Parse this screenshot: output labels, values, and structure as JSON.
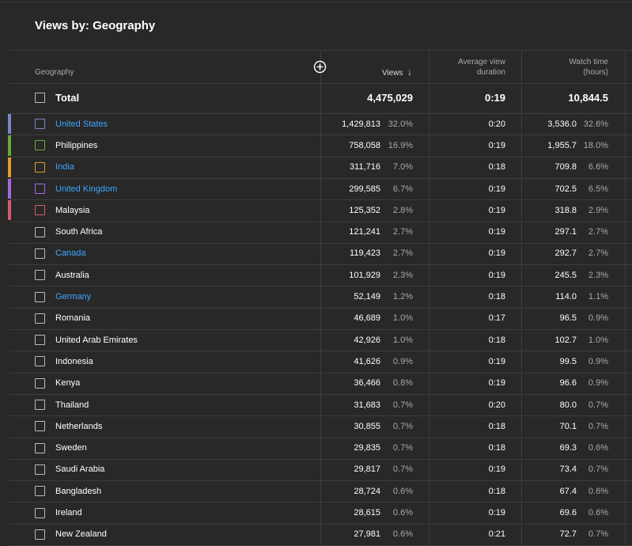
{
  "title": "Views by: Geography",
  "columns": {
    "geography": "Geography",
    "views": "Views",
    "views_sort": "↓",
    "avg": [
      "Average view",
      "duration"
    ],
    "watch": [
      "Watch time",
      "(hours)"
    ]
  },
  "total": {
    "label": "Total",
    "views": "4,475,029",
    "avg": "0:19",
    "watch": "10,844.5"
  },
  "rows": [
    {
      "name": "United States",
      "color": "#7986cb",
      "link": true,
      "views": "1,429,813",
      "views_pct": "32.0%",
      "avg": "0:20",
      "watch": "3,536.0",
      "watch_pct": "32.6%"
    },
    {
      "name": "Philippines",
      "color": "#6aa83a",
      "link": false,
      "views": "758,058",
      "views_pct": "16.9%",
      "avg": "0:19",
      "watch": "1,955.7",
      "watch_pct": "18.0%"
    },
    {
      "name": "India",
      "color": "#e39b2b",
      "link": true,
      "views": "311,716",
      "views_pct": "7.0%",
      "avg": "0:18",
      "watch": "709.8",
      "watch_pct": "6.6%"
    },
    {
      "name": "United Kingdom",
      "color": "#a56ae0",
      "link": true,
      "views": "299,585",
      "views_pct": "6.7%",
      "avg": "0:19",
      "watch": "702.5",
      "watch_pct": "6.5%"
    },
    {
      "name": "Malaysia",
      "color": "#d45b6b",
      "link": false,
      "views": "125,352",
      "views_pct": "2.8%",
      "avg": "0:19",
      "watch": "318.8",
      "watch_pct": "2.9%"
    },
    {
      "name": "South Africa",
      "link": false,
      "views": "121,241",
      "views_pct": "2.7%",
      "avg": "0:19",
      "watch": "297.1",
      "watch_pct": "2.7%"
    },
    {
      "name": "Canada",
      "link": true,
      "views": "119,423",
      "views_pct": "2.7%",
      "avg": "0:19",
      "watch": "292.7",
      "watch_pct": "2.7%"
    },
    {
      "name": "Australia",
      "link": false,
      "views": "101,929",
      "views_pct": "2.3%",
      "avg": "0:19",
      "watch": "245.5",
      "watch_pct": "2.3%"
    },
    {
      "name": "Germany",
      "link": true,
      "views": "52,149",
      "views_pct": "1.2%",
      "avg": "0:18",
      "watch": "114.0",
      "watch_pct": "1.1%"
    },
    {
      "name": "Romania",
      "link": false,
      "views": "46,689",
      "views_pct": "1.0%",
      "avg": "0:17",
      "watch": "96.5",
      "watch_pct": "0.9%"
    },
    {
      "name": "United Arab Emirates",
      "link": false,
      "views": "42,926",
      "views_pct": "1.0%",
      "avg": "0:18",
      "watch": "102.7",
      "watch_pct": "1.0%"
    },
    {
      "name": "Indonesia",
      "link": false,
      "views": "41,626",
      "views_pct": "0.9%",
      "avg": "0:19",
      "watch": "99.5",
      "watch_pct": "0.9%"
    },
    {
      "name": "Kenya",
      "link": false,
      "views": "36,466",
      "views_pct": "0.8%",
      "avg": "0:19",
      "watch": "96.6",
      "watch_pct": "0.9%"
    },
    {
      "name": "Thailand",
      "link": false,
      "views": "31,683",
      "views_pct": "0.7%",
      "avg": "0:20",
      "watch": "80.0",
      "watch_pct": "0.7%"
    },
    {
      "name": "Netherlands",
      "link": false,
      "views": "30,855",
      "views_pct": "0.7%",
      "avg": "0:18",
      "watch": "70.1",
      "watch_pct": "0.7%"
    },
    {
      "name": "Sweden",
      "link": false,
      "views": "29,835",
      "views_pct": "0.7%",
      "avg": "0:18",
      "watch": "69.3",
      "watch_pct": "0.6%"
    },
    {
      "name": "Saudi Arabia",
      "link": false,
      "views": "29,817",
      "views_pct": "0.7%",
      "avg": "0:19",
      "watch": "73.4",
      "watch_pct": "0.7%"
    },
    {
      "name": "Bangladesh",
      "link": false,
      "views": "28,724",
      "views_pct": "0.6%",
      "avg": "0:18",
      "watch": "67.4",
      "watch_pct": "0.6%"
    },
    {
      "name": "Ireland",
      "link": false,
      "views": "28,615",
      "views_pct": "0.6%",
      "avg": "0:19",
      "watch": "69.6",
      "watch_pct": "0.6%"
    },
    {
      "name": "New Zealand",
      "link": false,
      "views": "27,981",
      "views_pct": "0.6%",
      "avg": "0:21",
      "watch": "72.7",
      "watch_pct": "0.7%"
    }
  ]
}
